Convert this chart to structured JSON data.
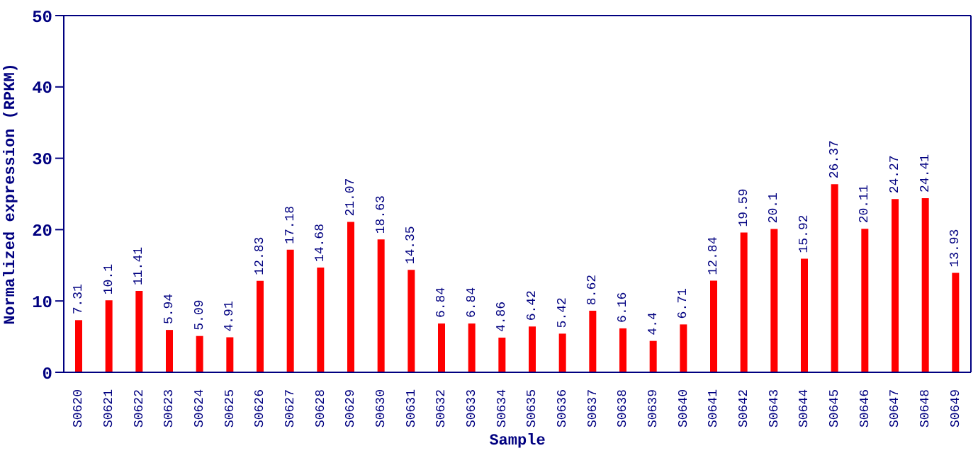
{
  "chart_data": {
    "type": "bar",
    "xlabel": "Sample",
    "ylabel": "Normalized expression (RPKM)",
    "categories": [
      "S0620",
      "S0621",
      "S0622",
      "S0623",
      "S0624",
      "S0625",
      "S0626",
      "S0627",
      "S0628",
      "S0629",
      "S0630",
      "S0631",
      "S0632",
      "S0633",
      "S0634",
      "S0635",
      "S0636",
      "S0637",
      "S0638",
      "S0639",
      "S0640",
      "S0641",
      "S0642",
      "S0643",
      "S0644",
      "S0645",
      "S0646",
      "S0647",
      "S0648",
      "S0649"
    ],
    "values": [
      7.31,
      10.1,
      11.41,
      5.94,
      5.09,
      4.91,
      12.83,
      17.18,
      14.68,
      21.07,
      18.63,
      14.35,
      6.84,
      6.84,
      4.86,
      6.42,
      5.42,
      8.62,
      6.16,
      4.4,
      6.71,
      12.84,
      19.59,
      20.1,
      15.92,
      26.37,
      20.11,
      24.27,
      24.41,
      13.93
    ],
    "color": "#ff0000",
    "ylim": [
      0,
      50
    ],
    "yticks": [
      0,
      10,
      20,
      30,
      40,
      50
    ],
    "grid": false,
    "legend": false,
    "data_labels": true
  }
}
